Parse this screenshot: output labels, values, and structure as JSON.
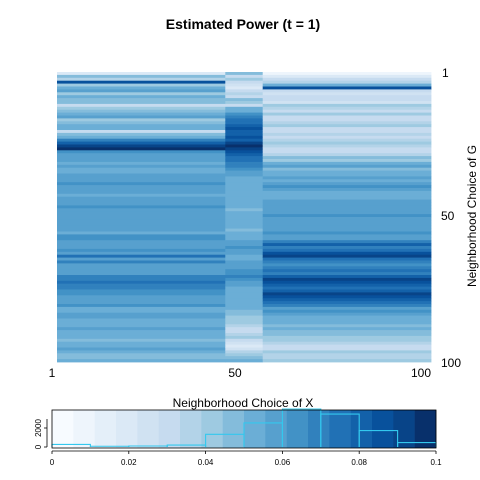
{
  "chart_data": [
    {
      "type": "heatmap",
      "title": "Estimated Power (t = 1)",
      "xlabel": "Neighborhood Choice of X",
      "ylabel": "Neighborhood Choice of G",
      "xlim": [
        1,
        100
      ],
      "ylim": [
        1,
        100
      ],
      "x_ticks": [
        "1",
        "50",
        "100"
      ],
      "y_ticks": [
        "1",
        "50",
        "100"
      ],
      "column_bands": [
        {
          "from": 1,
          "to": 45,
          "group": "left"
        },
        {
          "from": 46,
          "to": 55,
          "group": "middle"
        },
        {
          "from": 56,
          "to": 100,
          "group": "right"
        }
      ],
      "row_levels": {
        "left": [
          0.02,
          0.048,
          0.035,
          0.085,
          0.042,
          0.05,
          0.06,
          0.04,
          0.055,
          0.045,
          0.045,
          0.03,
          0.04,
          0.045,
          0.05,
          0.058,
          0.04,
          0.045,
          0.05,
          0.05,
          0.03,
          0.045,
          0.055,
          0.07,
          0.08,
          0.09,
          0.095,
          0.065,
          0.06,
          0.058,
          0.058,
          0.055,
          0.06,
          0.055,
          0.055,
          0.06,
          0.06,
          0.06,
          0.065,
          0.06,
          0.06,
          0.06,
          0.055,
          0.058,
          0.06,
          0.06,
          0.062,
          0.06,
          0.06,
          0.058,
          0.058,
          0.06,
          0.06,
          0.06,
          0.058,
          0.055,
          0.062,
          0.062,
          0.06,
          0.06,
          0.06,
          0.065,
          0.06,
          0.075,
          0.06,
          0.07,
          0.06,
          0.06,
          0.06,
          0.06,
          0.07,
          0.07,
          0.075,
          0.07,
          0.07,
          0.065,
          0.065,
          0.06,
          0.06,
          0.06,
          0.065,
          0.05,
          0.055,
          0.06,
          0.06,
          0.055,
          0.05,
          0.055,
          0.058,
          0.05,
          0.05,
          0.055,
          0.045,
          0.05,
          0.055,
          0.06,
          0.05,
          0.045,
          0.045,
          0.05
        ],
        "middle": [
          0.045,
          0.03,
          0.04,
          0.03,
          0.025,
          0.02,
          0.03,
          0.035,
          0.03,
          0.045,
          0.04,
          0.03,
          0.05,
          0.055,
          0.065,
          0.07,
          0.075,
          0.075,
          0.08,
          0.085,
          0.08,
          0.08,
          0.085,
          0.08,
          0.09,
          0.095,
          0.09,
          0.085,
          0.08,
          0.075,
          0.075,
          0.07,
          0.07,
          0.065,
          0.06,
          0.06,
          0.055,
          0.05,
          0.05,
          0.05,
          0.05,
          0.05,
          0.05,
          0.05,
          0.05,
          0.05,
          0.05,
          0.045,
          0.05,
          0.05,
          0.05,
          0.05,
          0.05,
          0.05,
          0.045,
          0.05,
          0.05,
          0.055,
          0.06,
          0.06,
          0.065,
          0.06,
          0.06,
          0.055,
          0.055,
          0.06,
          0.06,
          0.06,
          0.065,
          0.065,
          0.07,
          0.065,
          0.06,
          0.06,
          0.055,
          0.05,
          0.055,
          0.055,
          0.05,
          0.055,
          0.05,
          0.05,
          0.045,
          0.045,
          0.04,
          0.04,
          0.04,
          0.035,
          0.03,
          0.03,
          0.035,
          0.04,
          0.03,
          0.025,
          0.02,
          0.025,
          0.035,
          0.04,
          0.045,
          0.05
        ],
        "right": [
          0.01,
          0.02,
          0.03,
          0.035,
          0.05,
          0.085,
          0.03,
          0.025,
          0.03,
          0.03,
          0.025,
          0.04,
          0.035,
          0.03,
          0.04,
          0.03,
          0.03,
          0.035,
          0.04,
          0.03,
          0.03,
          0.035,
          0.03,
          0.035,
          0.04,
          0.035,
          0.03,
          0.03,
          0.035,
          0.045,
          0.04,
          0.05,
          0.06,
          0.045,
          0.05,
          0.05,
          0.06,
          0.055,
          0.06,
          0.065,
          0.06,
          0.055,
          0.05,
          0.055,
          0.06,
          0.06,
          0.058,
          0.06,
          0.06,
          0.062,
          0.06,
          0.06,
          0.058,
          0.06,
          0.06,
          0.062,
          0.06,
          0.06,
          0.07,
          0.08,
          0.07,
          0.075,
          0.085,
          0.09,
          0.075,
          0.07,
          0.065,
          0.07,
          0.075,
          0.07,
          0.08,
          0.09,
          0.085,
          0.08,
          0.075,
          0.08,
          0.09,
          0.085,
          0.08,
          0.075,
          0.07,
          0.06,
          0.065,
          0.06,
          0.05,
          0.055,
          0.05,
          0.045,
          0.05,
          0.045,
          0.045,
          0.04,
          0.04,
          0.035,
          0.03,
          0.03,
          0.04,
          0.035,
          0.035,
          0.04
        ]
      },
      "color_scale": [
        "#f7fbff",
        "#eef5fc",
        "#e4eff9",
        "#dbe9f6",
        "#d0e2f2",
        "#c6dbef",
        "#b3d3e8",
        "#9ecae1",
        "#84bcdb",
        "#6baed6",
        "#57a0ce",
        "#4292c6",
        "#3181bd",
        "#2171b5",
        "#1361a9",
        "#08519c",
        "#084488",
        "#08306b"
      ]
    },
    {
      "type": "bar",
      "title": "Neighborhood Choice of X",
      "xlim": [
        0,
        0.1
      ],
      "x_ticks": [
        "0",
        "0.02",
        "0.04",
        "0.06",
        "0.08",
        "0.1"
      ],
      "y_ticks": [
        "0",
        "2000"
      ],
      "ylim": [
        0,
        3000
      ],
      "bin_width": 0.01,
      "bins": [
        0.0,
        0.01,
        0.02,
        0.03,
        0.04,
        0.05,
        0.06,
        0.07,
        0.08,
        0.09
      ],
      "counts": [
        200,
        60,
        80,
        150,
        1000,
        1900,
        3000,
        2600,
        1300,
        350
      ],
      "hist_color": "#33c8ee"
    }
  ]
}
